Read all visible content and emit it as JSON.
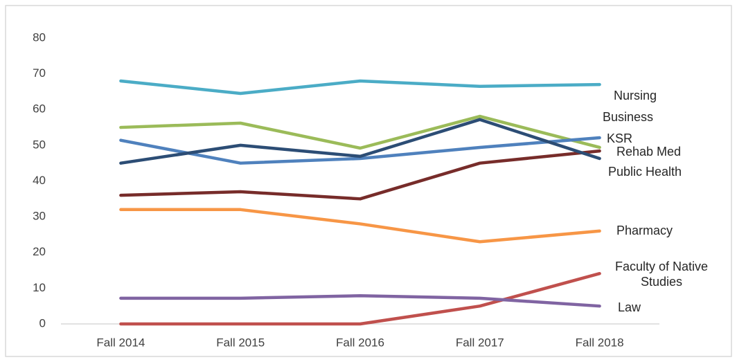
{
  "chart_data": {
    "type": "line",
    "categories": [
      "Fall 2014",
      "Fall 2015",
      "Fall 2016",
      "Fall 2017",
      "Fall 2018"
    ],
    "ylim": [
      0,
      80
    ],
    "yticks": [
      0,
      10,
      20,
      30,
      40,
      50,
      60,
      70,
      80
    ],
    "grid": false,
    "series": [
      {
        "name": "Nursing",
        "color": "#4bacc6",
        "values": [
          68,
          64.5,
          68,
          66.5,
          67
        ]
      },
      {
        "name": "Business",
        "color": "#9bbb59",
        "values": [
          55,
          56.2,
          49.2,
          58.1,
          49.4
        ]
      },
      {
        "name": "KSR",
        "color": "#4f81bd",
        "values": [
          51.4,
          45,
          46.3,
          49.4,
          52.1
        ]
      },
      {
        "name": "Rehab Med",
        "color": "#772c2a",
        "values": [
          36,
          37,
          35,
          45,
          48.4
        ]
      },
      {
        "name": "Public Health",
        "color": "#2c4d75",
        "values": [
          45,
          50,
          46.9,
          57.2,
          46.3
        ]
      },
      {
        "name": "Pharmacy",
        "color": "#f79646",
        "values": [
          32,
          32,
          28,
          23,
          26
        ]
      },
      {
        "name": "Faculty of Native Studies",
        "color": "#c0504d",
        "values": [
          0,
          0,
          0,
          5,
          14.1
        ]
      },
      {
        "name": "Law",
        "color": "#8064a2",
        "values": [
          7.2,
          7.2,
          7.9,
          7.2,
          5
        ]
      }
    ]
  }
}
